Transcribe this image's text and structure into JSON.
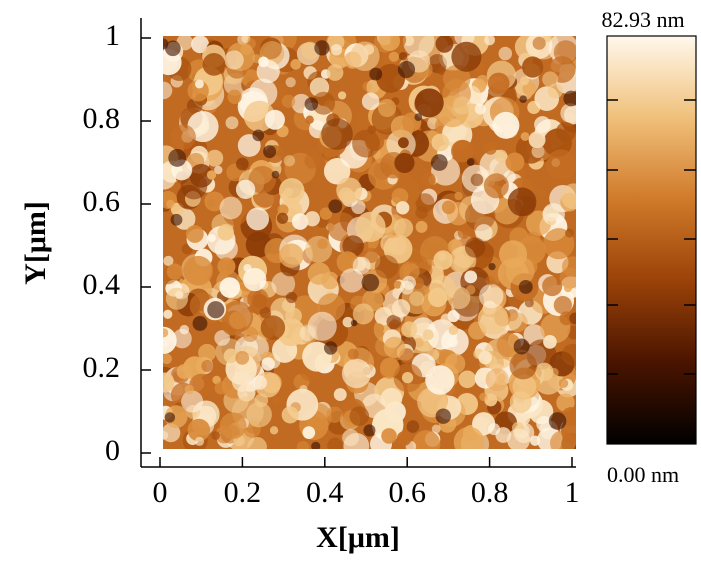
{
  "chart_data": {
    "type": "image",
    "xlabel": "X[μm]",
    "ylabel": "Y[μm]",
    "xlim": [
      0,
      1
    ],
    "ylim": [
      0,
      1
    ],
    "xticks": [
      0,
      0.2,
      0.4,
      0.6,
      0.8,
      1
    ],
    "yticks": [
      0,
      0.2,
      0.4,
      0.6,
      0.8,
      1
    ],
    "zlim": [
      0,
      82.93
    ],
    "zticks": [
      {
        "value": 0,
        "label": "0.00 nm"
      },
      {
        "value": 82.93,
        "label": "82.93 nm"
      }
    ],
    "colormap": [
      "#000000",
      "#4a1400",
      "#9a4208",
      "#d07a2a",
      "#f0c07a",
      "#fff8ec"
    ]
  }
}
